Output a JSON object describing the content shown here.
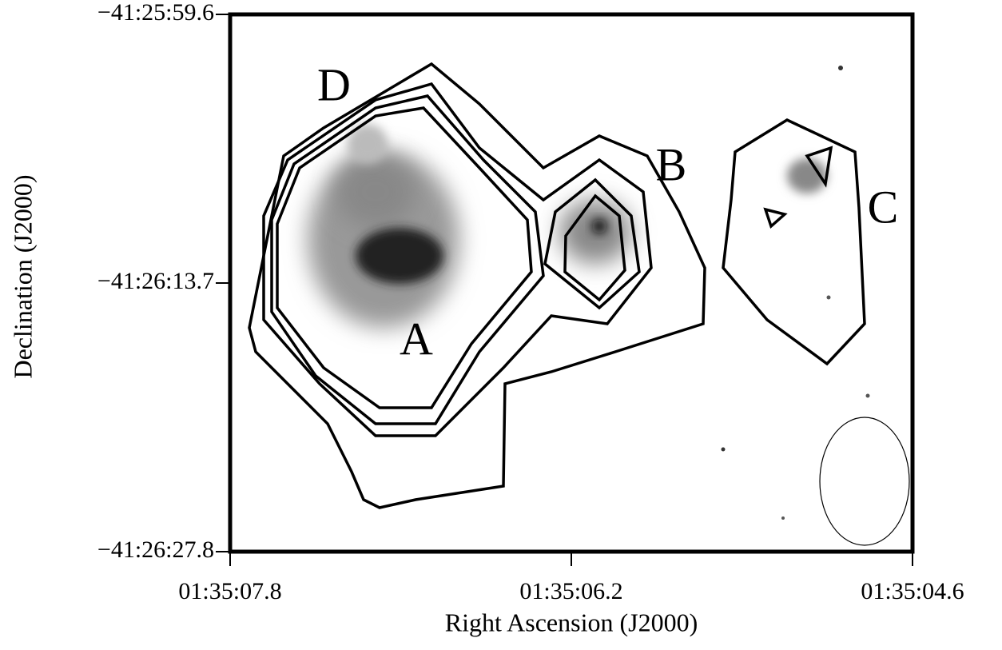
{
  "chart_data": {
    "type": "image",
    "xlabel": "Right Ascension (J2000)",
    "ylabel": "Declination (J2000)",
    "xlim": [
      5707.8,
      5704.6
    ],
    "ylim": [
      -149187.8,
      -149159.6
    ],
    "xticks": [
      {
        "value": 5707.8,
        "label": "01:35:07.8"
      },
      {
        "value": 5706.2,
        "label": "01:35:06.2"
      },
      {
        "value": 5704.6,
        "label": "01:35:04.6"
      }
    ],
    "yticks": [
      {
        "value": -149159.6,
        "label": "−41:25:59.6"
      },
      {
        "value": -149173.7,
        "label": "−41:26:13.7"
      },
      {
        "value": -149187.8,
        "label": "−41:26:27.8"
      }
    ],
    "annotations": [
      "A",
      "B",
      "C",
      "D"
    ]
  }
}
